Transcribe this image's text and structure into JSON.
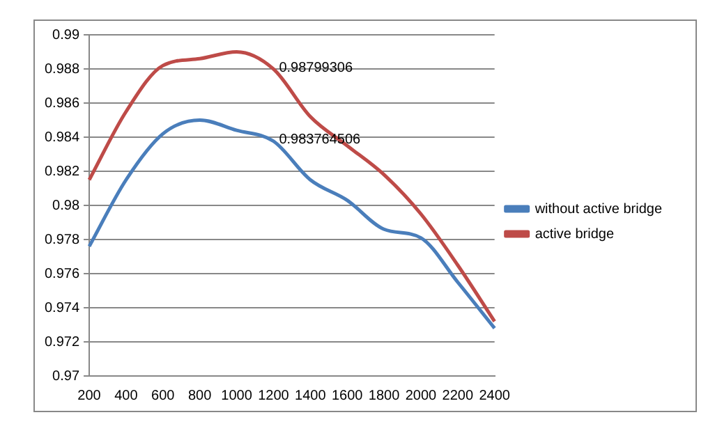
{
  "chart_data": {
    "type": "line",
    "categories": [
      "200",
      "400",
      "600",
      "800",
      "1000",
      "1200",
      "1400",
      "1600",
      "1800",
      "2000",
      "2200",
      "2400"
    ],
    "series": [
      {
        "name": "without active bridge",
        "color": "#4a7ebb",
        "values": [
          0.9776,
          0.9815,
          0.9842,
          0.985,
          0.9844,
          0.983764506,
          0.9815,
          0.9803,
          0.9786,
          0.9781,
          0.9755,
          0.9728
        ],
        "value_labels": [
          null,
          null,
          null,
          null,
          null,
          "0.983764506",
          null,
          null,
          null,
          null,
          null,
          null
        ]
      },
      {
        "name": "active bridge",
        "color": "#be4b48",
        "values": [
          0.9815,
          0.9855,
          0.9882,
          0.9886,
          0.989,
          0.98799306,
          0.9852,
          0.9835,
          0.9818,
          0.9795,
          0.9765,
          0.9732
        ],
        "value_labels": [
          null,
          null,
          null,
          null,
          null,
          "0.98799306",
          null,
          null,
          null,
          null,
          null,
          null
        ]
      }
    ],
    "ylim": [
      0.97,
      0.99
    ],
    "yticks": [
      0.97,
      0.972,
      0.974,
      0.976,
      0.978,
      0.98,
      0.982,
      0.984,
      0.986,
      0.988,
      0.99
    ],
    "grid": "y",
    "legend": "right",
    "marker": "none",
    "line_style": "solid"
  }
}
